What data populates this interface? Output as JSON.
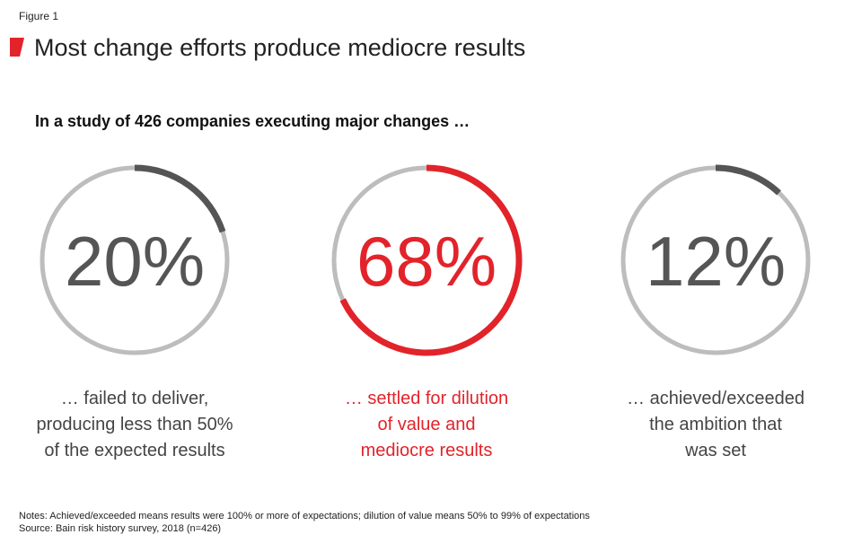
{
  "header": {
    "figure_label": "Figure 1",
    "title": "Most change efforts produce mediocre results",
    "subtitle": "In a study of 426 companies executing major changes …"
  },
  "colors": {
    "accent": "#e2232a",
    "dark": "#555555",
    "track": "#bdbdbd",
    "text": "#222222"
  },
  "chart_data": {
    "type": "pie",
    "title": "Most change efforts produce mediocre results",
    "subtitle": "In a study of 426 companies executing major changes …",
    "series": [
      {
        "value": 20,
        "label": "20%",
        "color": "#555555",
        "caption": [
          "… failed to deliver,",
          "producing less than 50%",
          "of the expected results"
        ]
      },
      {
        "value": 68,
        "label": "68%",
        "color": "#e2232a",
        "caption": [
          "… settled for dilution",
          "of value and",
          "mediocre results"
        ]
      },
      {
        "value": 12,
        "label": "12%",
        "color": "#555555",
        "caption": [
          "… achieved/exceeded",
          "the ambition that",
          "was set"
        ]
      }
    ]
  },
  "notes": {
    "line1": "Notes: Achieved/exceeded means results were 100% or more of expectations; dilution of value means 50% to 99% of expectations",
    "line2": "Source: Bain risk history survey, 2018 (n=426)"
  }
}
